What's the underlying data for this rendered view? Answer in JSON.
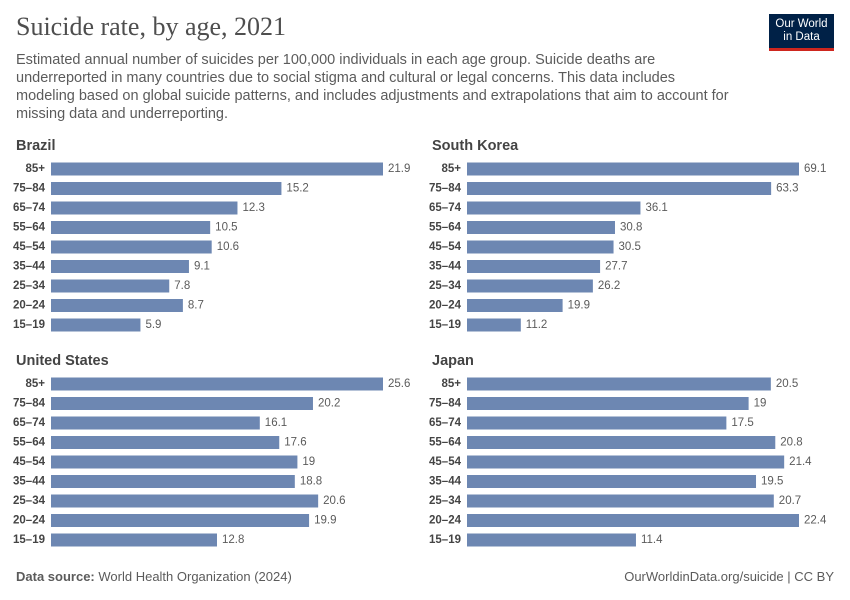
{
  "title": "Suicide rate, by age, 2021",
  "subtitle": "Estimated annual number of suicides per 100,000 individuals in each age group. Suicide deaths are underreported in many countries due to social stigma and cultural or legal concerns. This data includes modeling based on global suicide patterns, and includes adjustments and extrapolations that aim to account for missing data and underreporting.",
  "logo": [
    "Our World",
    "in Data"
  ],
  "source_label": "Data source:",
  "source": "World Health Organization (2024)",
  "url": "OurWorldinData.org/suicide | CC BY",
  "chart_data": [
    {
      "type": "bar",
      "title": "Brazil",
      "color": "#6d87b2",
      "categories": [
        "85+",
        "75–84",
        "65–74",
        "55–64",
        "45–54",
        "35–44",
        "25–34",
        "20–24",
        "15–19"
      ],
      "values": [
        21.9,
        15.2,
        12.3,
        10.5,
        10.6,
        9.1,
        7.8,
        8.7,
        5.9
      ]
    },
    {
      "type": "bar",
      "title": "South Korea",
      "color": "#6d87b2",
      "categories": [
        "85+",
        "75–84",
        "65–74",
        "55–64",
        "45–54",
        "35–44",
        "25–34",
        "20–24",
        "15–19"
      ],
      "values": [
        69.1,
        63.3,
        36.1,
        30.8,
        30.5,
        27.7,
        26.2,
        19.9,
        11.2
      ]
    },
    {
      "type": "bar",
      "title": "United States",
      "color": "#6d87b2",
      "categories": [
        "85+",
        "75–84",
        "65–74",
        "55–64",
        "45–54",
        "35–44",
        "25–34",
        "20–24",
        "15–19"
      ],
      "values": [
        25.6,
        20.2,
        16.1,
        17.6,
        19,
        18.8,
        20.6,
        19.9,
        12.8
      ]
    },
    {
      "type": "bar",
      "title": "Japan",
      "color": "#6d87b2",
      "categories": [
        "85+",
        "75–84",
        "65–74",
        "55–64",
        "45–54",
        "35–44",
        "25–34",
        "20–24",
        "15–19"
      ],
      "values": [
        20.5,
        19,
        17.5,
        20.8,
        21.4,
        19.5,
        20.7,
        22.4,
        11.4
      ]
    }
  ]
}
